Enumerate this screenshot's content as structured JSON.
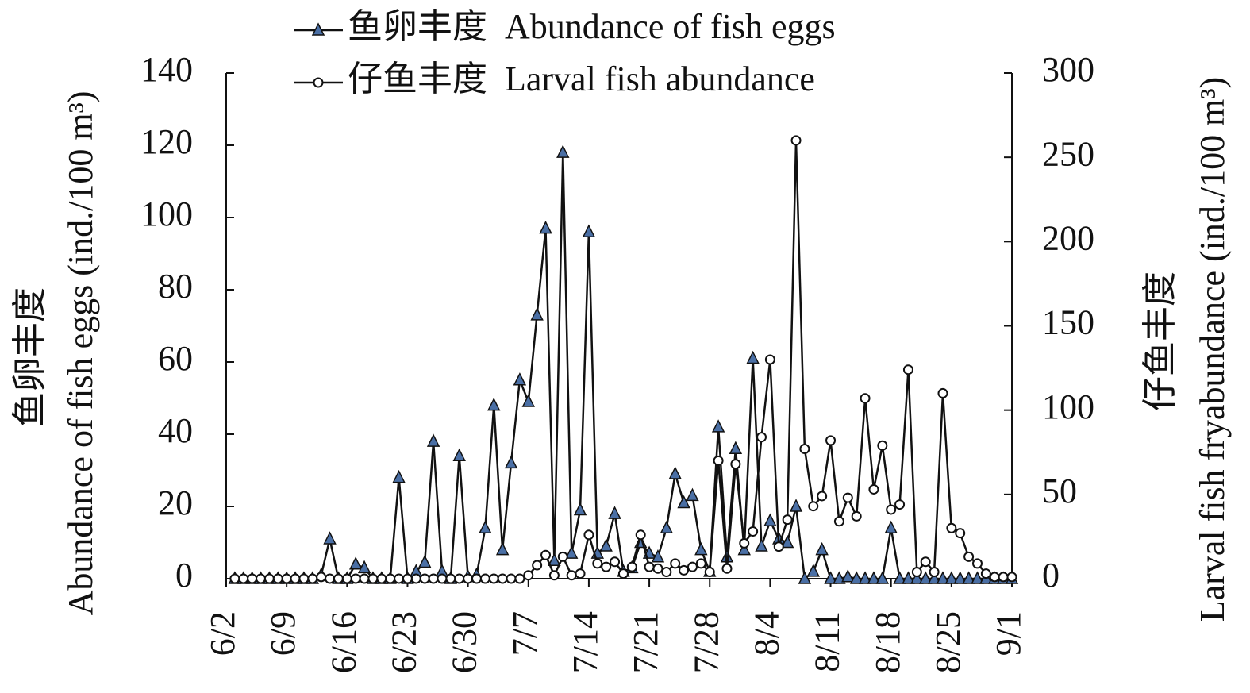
{
  "chart_data": {
    "type": "line",
    "y_label_cn": "鱼卵丰度",
    "y_label": "Abundance of fish eggs (ind./100 m³)",
    "y2_label_cn": "仔鱼丰度",
    "y2_label": "Larval fish fryabundance (ind./100 m³)",
    "categories": [
      "6/2",
      null,
      null,
      null,
      null,
      null,
      null,
      "6/9",
      null,
      null,
      null,
      null,
      null,
      null,
      "6/16",
      null,
      null,
      null,
      null,
      null,
      null,
      "6/23",
      null,
      null,
      null,
      null,
      null,
      null,
      "6/30",
      null,
      null,
      null,
      null,
      null,
      null,
      "7/7",
      null,
      null,
      null,
      null,
      null,
      null,
      "7/14",
      null,
      null,
      null,
      null,
      null,
      null,
      "7/21",
      null,
      null,
      null,
      null,
      null,
      null,
      "7/28",
      null,
      null,
      null,
      null,
      null,
      null,
      "8/4",
      null,
      null,
      null,
      null,
      null,
      null,
      "8/11",
      null,
      null,
      null,
      null,
      null,
      null,
      "8/18",
      null,
      null,
      null,
      null,
      null,
      null,
      "8/25",
      null,
      null,
      null,
      null,
      null,
      null,
      "9/1"
    ],
    "series": [
      {
        "name": "鱼卵丰度  Abundance of fish eggs",
        "color": "#4a6fa5",
        "marker": "triangle",
        "axis": "y",
        "values": [
          null,
          0,
          0,
          0,
          0,
          0,
          0,
          0,
          0,
          0,
          0,
          1,
          11,
          0,
          0,
          4,
          3,
          0,
          0,
          0,
          28,
          0,
          2,
          4.5,
          38,
          2,
          0,
          34,
          0.5,
          1,
          14,
          48,
          8,
          32,
          55,
          49,
          73,
          97,
          5,
          118,
          7,
          19,
          96,
          7,
          9,
          18,
          2,
          3,
          10,
          7,
          6,
          14,
          29,
          21,
          23,
          8,
          2,
          42,
          6,
          36,
          8,
          61,
          9,
          16,
          11,
          10,
          20,
          0,
          2,
          8,
          0,
          0,
          0.5,
          0,
          0,
          0,
          0,
          14,
          0,
          0,
          0,
          0,
          0,
          0,
          0,
          0,
          0,
          0,
          0,
          0,
          0,
          0
        ]
      },
      {
        "name": "仔鱼丰度  Larval fish abundance",
        "color": "#ffffff",
        "marker": "circle",
        "axis": "y2",
        "values": [
          null,
          0,
          0,
          0,
          0,
          0,
          0,
          0,
          0,
          0,
          0,
          1,
          0,
          0,
          0,
          0,
          0,
          0,
          0,
          0,
          0,
          0,
          0,
          0,
          0,
          0,
          0,
          0,
          0,
          0,
          0,
          0,
          0,
          0,
          0,
          2,
          8,
          14,
          2,
          13,
          2,
          3,
          26,
          9,
          7,
          10,
          3,
          7,
          26,
          7,
          6,
          4,
          9,
          5,
          7,
          9,
          4,
          70,
          6,
          68,
          21,
          28,
          84,
          130,
          19,
          35,
          260,
          77,
          43,
          49,
          82,
          34,
          48,
          37,
          107,
          53,
          79,
          41,
          44,
          124,
          4,
          10,
          4,
          110,
          30,
          27,
          13,
          9,
          3,
          1,
          1,
          1
        ]
      }
    ],
    "ylim": [
      0,
      140
    ],
    "yticks": [
      0,
      20,
      40,
      60,
      80,
      100,
      120,
      140
    ],
    "y2lim": [
      0,
      300
    ],
    "y2ticks": [
      0,
      50,
      100,
      150,
      200,
      250,
      300
    ],
    "legend": "top",
    "grid": false
  }
}
